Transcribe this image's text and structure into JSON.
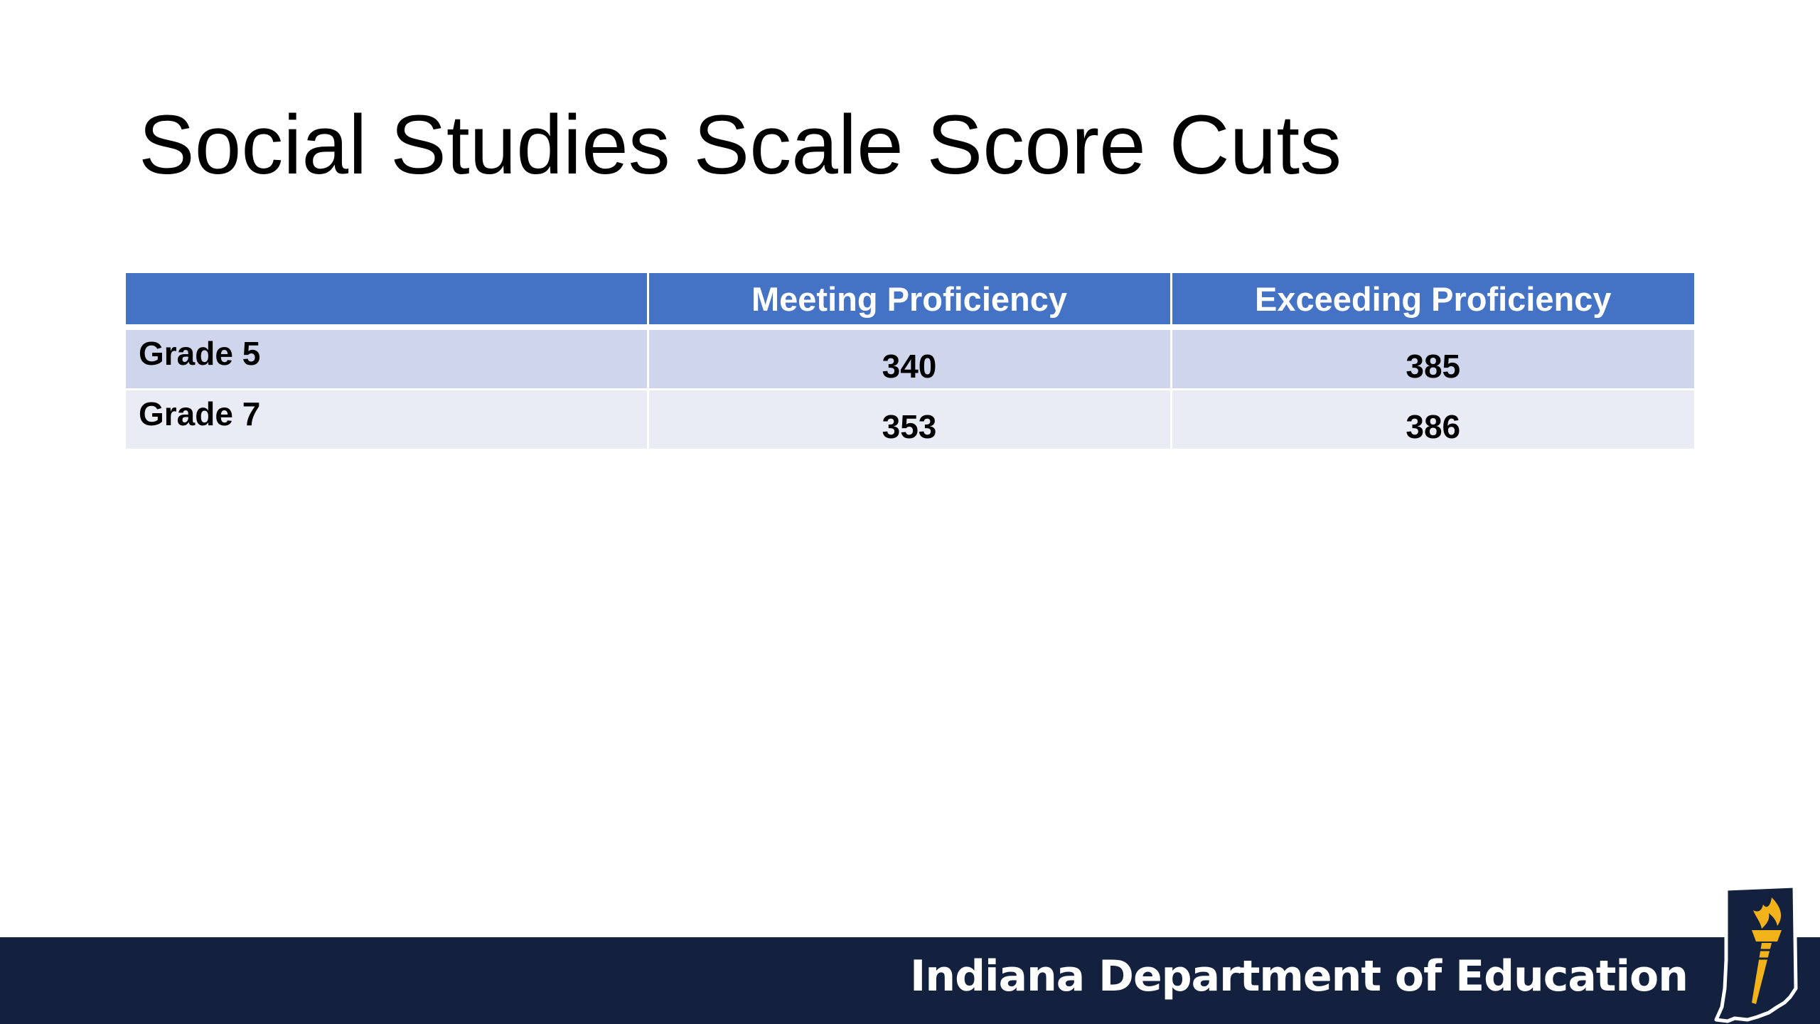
{
  "slide": {
    "title": "Social Studies Scale Score Cuts"
  },
  "table": {
    "headers": [
      "",
      "Meeting Proficiency",
      "Exceeding Proficiency"
    ],
    "rows": [
      {
        "label": "Grade 5",
        "meeting": "340",
        "exceeding": "385"
      },
      {
        "label": "Grade 7",
        "meeting": "353",
        "exceeding": "386"
      }
    ]
  },
  "footer": {
    "organization": "Indiana Department of Education",
    "logo_icon": "indiana-torch-logo-icon"
  },
  "colors": {
    "header_blue": "#4472c4",
    "row_odd": "#cfd5ea",
    "row_even": "#e9ebf5",
    "footer_navy": "#13213f",
    "logo_gold": "#f2b31a"
  }
}
